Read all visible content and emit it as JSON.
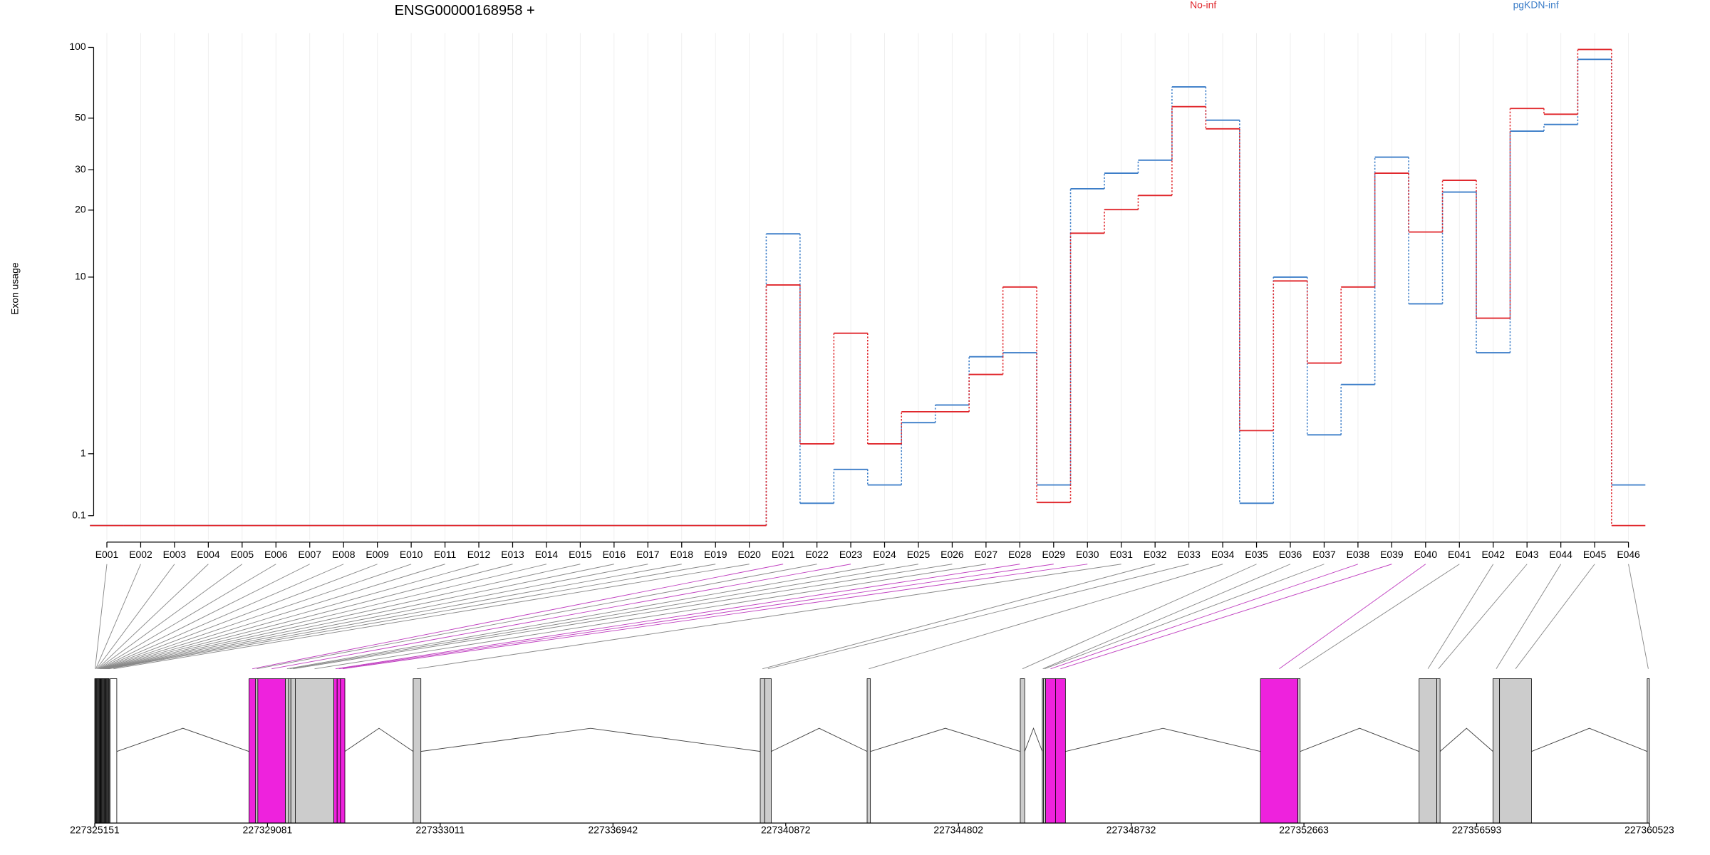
{
  "chart_data": {
    "type": "step-line",
    "title": "ENSG00000168958 +",
    "y_label": "Exon usage",
    "yscale": "log1p",
    "ylim": [
      0,
      100
    ],
    "yticks": [
      0.1,
      1,
      10,
      20,
      30,
      50,
      100
    ],
    "grid": true,
    "categories": [
      "E001",
      "E002",
      "E003",
      "E004",
      "E005",
      "E006",
      "E007",
      "E008",
      "E009",
      "E010",
      "E011",
      "E012",
      "E013",
      "E014",
      "E015",
      "E016",
      "E017",
      "E018",
      "E019",
      "E020",
      "E021",
      "E022",
      "E023",
      "E024",
      "E025",
      "E026",
      "E027",
      "E028",
      "E029",
      "E030",
      "E031",
      "E032",
      "E033",
      "E034",
      "E035",
      "E036",
      "E037",
      "E038",
      "E039",
      "E040",
      "E041",
      "E042",
      "E043",
      "E044",
      "E045",
      "E046"
    ],
    "series": [
      {
        "name": "pgKDN-inf",
        "color": "#3b7dc8",
        "values": [
          0,
          0,
          0,
          0,
          0,
          0,
          0,
          0,
          0,
          0,
          0,
          0,
          0,
          0,
          0,
          0,
          0,
          0,
          0,
          0,
          15.7,
          0.24,
          0.72,
          0.48,
          1.7,
          2.2,
          4.1,
          4.3,
          0.48,
          24.8,
          29,
          33,
          68,
          49,
          0.24,
          10,
          1.4,
          2.9,
          34,
          7.5,
          24,
          4.3,
          44,
          47,
          89,
          0.48
        ]
      },
      {
        "name": "No-inf",
        "color": "#e0262b",
        "values": [
          0,
          0,
          0,
          0,
          0,
          0,
          0,
          0,
          0,
          0,
          0,
          0,
          0,
          0,
          0,
          0,
          0,
          0,
          0,
          0,
          9.2,
          1.2,
          5.4,
          1.2,
          2,
          2,
          3.3,
          9,
          0.25,
          15.8,
          20.1,
          23.2,
          56,
          45,
          1.5,
          9.6,
          3.8,
          9,
          29,
          16,
          27,
          6.4,
          55,
          52,
          98,
          0
        ]
      }
    ],
    "exon_colors": [
      "#ffffff",
      "#ffffff",
      "#ffffff",
      "#ffffff",
      "#ffffff",
      "#ffffff",
      "#ffffff",
      "#ffffff",
      "#ffffff",
      "#ffffff",
      "#ffffff",
      "#ffffff",
      "#ffffff",
      "#ffffff",
      "#ffffff",
      "#ffffff",
      "#ffffff",
      "#ffffff",
      "#ffffff",
      "#ffffff",
      "#ee22dd",
      "#cccccc",
      "#ee22dd",
      "#cccccc",
      "#cccccc",
      "#cccccc",
      "#cccccc",
      "#ee22dd",
      "#ee22dd",
      "#ee22dd",
      "#cccccc",
      "#cccccc",
      "#cccccc",
      "#cccccc",
      "#cccccc",
      "#cccccc",
      "#cccccc",
      "#ee22dd",
      "#ee22dd",
      "#ee22dd",
      "#cccccc",
      "#cccccc",
      "#cccccc",
      "#cccccc",
      "#cccccc",
      "#cccccc"
    ],
    "genomic_lim": [
      227325151,
      227360523
    ],
    "genomic_ticks": [
      227325151,
      227329081,
      227333011,
      227336942,
      227340872,
      227344802,
      227348732,
      227352663,
      227356593,
      227360523
    ]
  }
}
